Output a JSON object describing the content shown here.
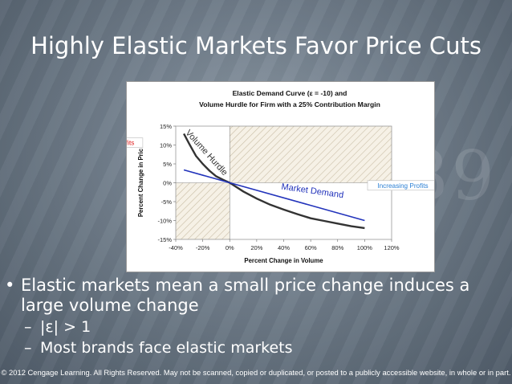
{
  "slide": {
    "title": "Highly Elastic Markets Favor Price Cuts",
    "bullets": [
      {
        "text": "Elastic markets mean a small price change induces a large volume change"
      },
      {
        "text": "|ε| > 1"
      },
      {
        "text": "Most brands face elastic markets"
      }
    ],
    "footer": "© 2012 Cengage Learning. All Rights Reserved. May not be scanned, copied or duplicated, or posted to a publicly accessible website, in whole or in part."
  },
  "chart_data": {
    "type": "line",
    "title_line1": "Elastic Demand Curve (ε = -10) and",
    "title_line2": "Volume Hurdle for Firm with a 25% Contribution Margin",
    "xlabel": "Percent Change in Volume",
    "ylabel": "Percent Change in Pric",
    "xlim": [
      -40,
      120
    ],
    "ylim": [
      -15,
      15
    ],
    "x_ticks": [
      -40,
      -20,
      0,
      20,
      40,
      60,
      80,
      100,
      120
    ],
    "x_tick_labels": [
      "-40%",
      "-20%",
      "0%",
      "20%",
      "40%",
      "60%",
      "80%",
      "100%",
      "120%"
    ],
    "y_ticks": [
      15,
      10,
      5,
      0,
      -5,
      -10,
      -15
    ],
    "y_tick_labels": [
      "15%",
      "10%",
      "5%",
      "0%",
      "-5%",
      "-10%",
      "-15%"
    ],
    "series": [
      {
        "name": "Volume Hurdle",
        "color": "#333333",
        "points": [
          [
            -34,
            13
          ],
          [
            -30,
            10.3
          ],
          [
            -25,
            7.1
          ],
          [
            -20,
            5.0
          ],
          [
            -15,
            3.2
          ],
          [
            -10,
            1.7
          ],
          [
            -5,
            0.8
          ],
          [
            0,
            0
          ],
          [
            10,
            -2.3
          ],
          [
            20,
            -4.2
          ],
          [
            30,
            -5.8
          ],
          [
            40,
            -7.1
          ],
          [
            50,
            -8.3
          ],
          [
            60,
            -9.4
          ],
          [
            70,
            -10.1
          ],
          [
            80,
            -10.8
          ],
          [
            90,
            -11.5
          ],
          [
            100,
            -12.0
          ]
        ]
      },
      {
        "name": "Market Demand",
        "color": "#2233bb",
        "points": [
          [
            -34,
            3.4
          ],
          [
            0,
            0
          ],
          [
            100,
            -10
          ]
        ]
      }
    ],
    "shaded_regions": [
      {
        "x0": -40,
        "x1": 0,
        "y0": 0,
        "y1": -15
      },
      {
        "x0": 0,
        "x1": 120,
        "y0": 0,
        "y1": 15
      }
    ],
    "annotations": [
      {
        "text": "Volume Hurdle",
        "color": "#333333"
      },
      {
        "text": "Market Demand",
        "color": "#2233bb"
      },
      {
        "text": "Decreasing Profits",
        "color": "#e02020"
      },
      {
        "text": "Increasing Profits",
        "color": "#2a7fd4"
      }
    ]
  }
}
